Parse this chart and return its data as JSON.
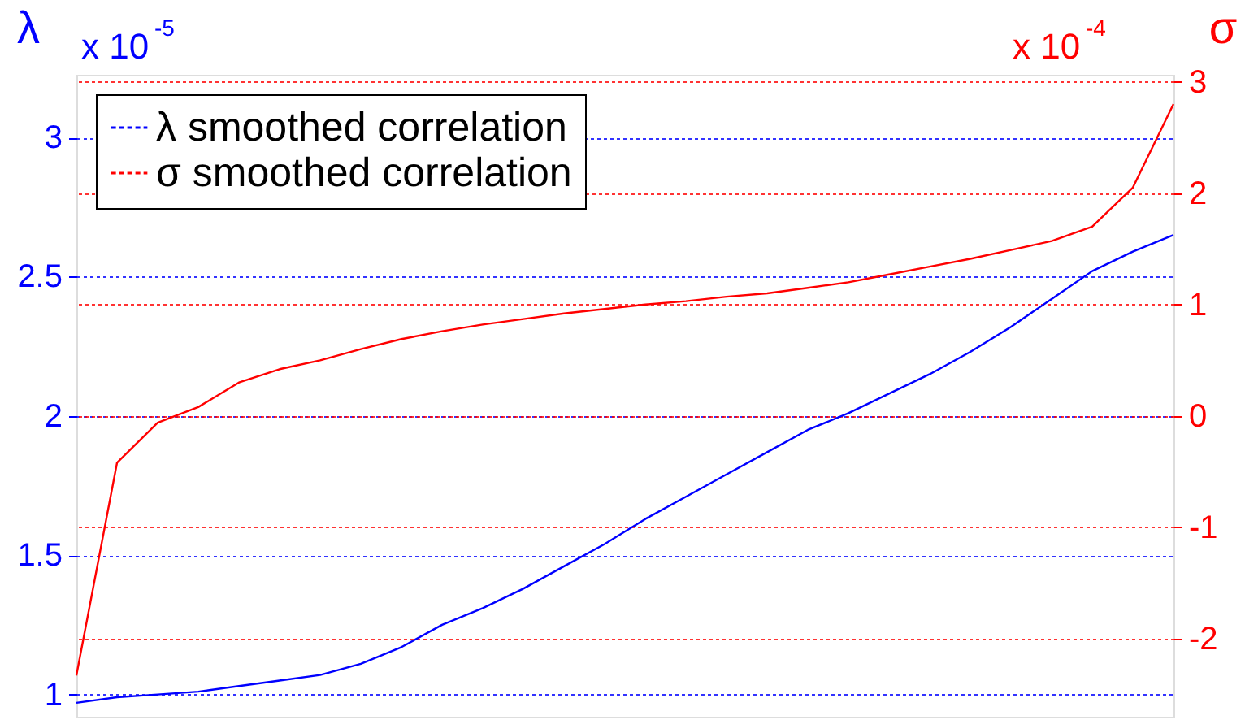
{
  "chart_data": {
    "type": "line",
    "ylabel": "λ",
    "y2label": "σ",
    "annotations": [
      "x 10$^{-5}$",
      "x 10$^{-4}$"
    ],
    "categories": [
      null,
      null,
      null,
      null,
      null,
      null,
      null,
      null,
      null,
      null,
      null,
      null,
      null,
      null,
      null,
      null,
      null,
      null,
      null,
      null,
      null,
      null,
      null,
      null,
      null,
      null,
      null,
      null
    ],
    "series": [
      {
        "name": "λ smoothed correlation",
        "color": "#0000ff",
        "values": [
          0.97,
          0.99,
          1.0,
          1.01,
          1.03,
          1.05,
          1.07,
          1.11,
          1.17,
          1.25,
          1.31,
          1.38,
          1.46,
          1.54,
          1.63,
          1.71,
          1.79,
          1.87,
          1.95,
          2.01,
          2.08,
          2.15,
          2.23,
          2.32,
          2.42,
          2.52,
          2.59,
          2.65
        ]
      },
      {
        "name": "σ smoothed correlation",
        "color": "#ff0000",
        "axis": "y2",
        "values": [
          -2.33,
          -0.42,
          -0.06,
          0.08,
          0.3,
          0.42,
          0.5,
          0.6,
          0.69,
          0.76,
          0.82,
          0.87,
          0.92,
          0.96,
          1.0,
          1.03,
          1.07,
          1.1,
          1.15,
          1.2,
          1.27,
          1.34,
          1.41,
          1.49,
          1.57,
          1.7,
          2.05,
          2.8
        ]
      }
    ],
    "ylim": [
      0.92,
      3.225
    ],
    "yticks": [
      {
        "value": 1,
        "label": "1"
      },
      1.5,
      {
        "value": 2,
        "label": "2"
      },
      2.5,
      {
        "value": 3,
        "label": "3"
      }
    ],
    "y2lim": [
      -2.7,
      3.0625
    ],
    "y2ticks": [
      -2,
      -1,
      0,
      1,
      2,
      3
    ],
    "grid": true,
    "legend": "top left",
    "line_style": "solid",
    "marker": "none"
  }
}
